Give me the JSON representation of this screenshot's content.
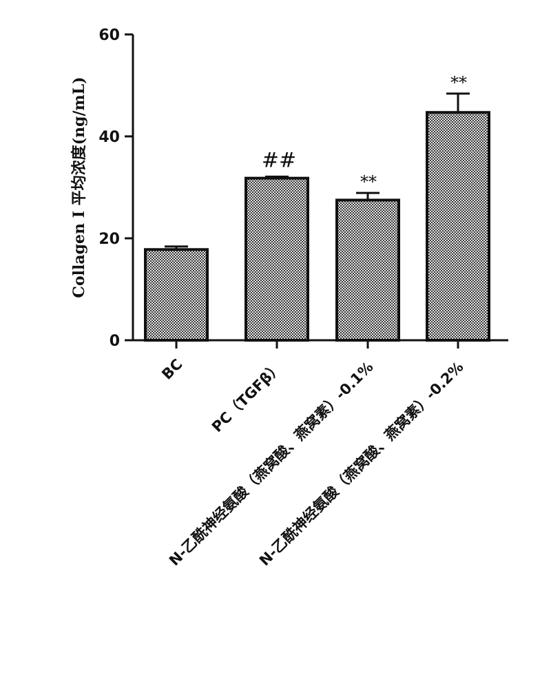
{
  "chart_data": {
    "type": "bar",
    "ylabel": "Collagen I 平均浓度(ng/mL)",
    "ylim": [
      0,
      60
    ],
    "yticks": [
      0,
      20,
      40,
      60
    ],
    "categories": [
      "BC",
      "PC（TGFβ）",
      "N-乙酰神经氨酸（燕窝酸、燕窝素）-0.1%",
      "N-乙酰神经氨酸（燕窝酸、燕窝素）-0.2%"
    ],
    "values": [
      17.8,
      31.8,
      27.5,
      44.7
    ],
    "errors": [
      0.6,
      0.3,
      1.4,
      3.7
    ],
    "annotations": [
      "",
      "##",
      "**",
      "**"
    ],
    "colors": {
      "bar_fill": "#b8b8b8",
      "bar_stroke": "#111111"
    }
  }
}
